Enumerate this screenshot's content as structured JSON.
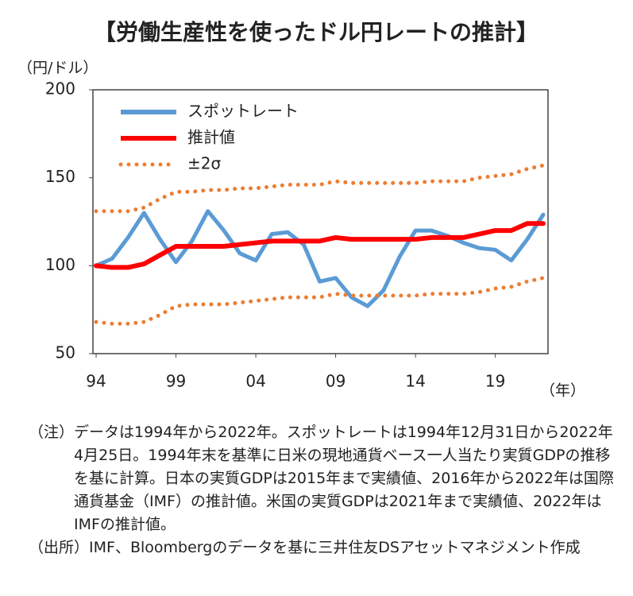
{
  "chart_data": {
    "type": "line",
    "title": "【労働生産性を使ったドル円レートの推計】",
    "y_label": "（円/ドル）",
    "x_label": "（年）",
    "x": [
      1994,
      1995,
      1996,
      1997,
      1998,
      1999,
      2000,
      2001,
      2002,
      2003,
      2004,
      2005,
      2006,
      2007,
      2008,
      2009,
      2010,
      2011,
      2012,
      2013,
      2014,
      2015,
      2016,
      2017,
      2018,
      2019,
      2020,
      2021,
      2022
    ],
    "series": [
      {
        "name": "スポットレート",
        "color": "#5b9bd5",
        "style": "solid",
        "values": [
          100,
          104,
          116,
          130,
          115,
          102,
          114,
          131,
          120,
          107,
          103,
          118,
          119,
          112,
          91,
          93,
          82,
          77,
          86,
          105,
          120,
          120,
          117,
          113,
          110,
          109,
          103,
          115,
          129
        ]
      },
      {
        "name": "推計値",
        "color": "#ff0000",
        "style": "solid",
        "values": [
          100,
          99,
          99,
          101,
          106,
          111,
          111,
          111,
          111,
          112,
          113,
          114,
          114,
          114,
          114,
          116,
          115,
          115,
          115,
          115,
          115,
          116,
          116,
          116,
          118,
          120,
          120,
          124,
          124
        ]
      },
      {
        "name": "±2σ",
        "color": "#ed7d31",
        "style": "dotted",
        "values": [
          131,
          131,
          131,
          133,
          138,
          142,
          142,
          143,
          143,
          144,
          144,
          145,
          146,
          146,
          146,
          148,
          147,
          147,
          147,
          147,
          147,
          148,
          148,
          148,
          150,
          151,
          152,
          155,
          157
        ]
      },
      {
        "color": "#ed7d31",
        "style": "dotted",
        "values": [
          68,
          67,
          67,
          68,
          72,
          77,
          78,
          78,
          78,
          79,
          80,
          81,
          82,
          82,
          82,
          84,
          83,
          83,
          83,
          83,
          83,
          84,
          84,
          84,
          85,
          87,
          88,
          91,
          93
        ]
      }
    ],
    "xlim": [
      1993.8,
      2022.3
    ],
    "xticks": [
      {
        "value": 1994,
        "label": "94"
      },
      {
        "value": 1999,
        "label": "99"
      },
      {
        "value": 2004,
        "label": "04"
      },
      {
        "value": 2009,
        "label": "09"
      },
      {
        "value": 2014,
        "label": "14"
      },
      {
        "value": 2019,
        "label": "19"
      }
    ],
    "ylim": [
      50,
      200
    ],
    "yticks": [
      50,
      100,
      150,
      200
    ],
    "legend": "upper-left"
  },
  "notes": [
    {
      "label": "（注）",
      "text": "データは1994年から2022年。スポットレートは1994年12月31日から2022年4月25日。1994年末を基準に日米の現地通貨ベース一人当たり実質GDPの推移を基に計算。日本の実質GDPは2015年まで実績値、2016年から2022年は国際通貨基金（IMF）の推計値。米国の実質GDPは2021年まで実績値、2022年はIMFの推計値。"
    },
    {
      "label": "（出所）",
      "text": "IMF、Bloombergのデータを基に三井住友DSアセットマネジメント作成"
    }
  ]
}
